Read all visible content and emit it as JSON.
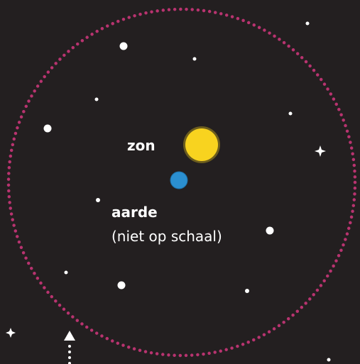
{
  "labels": {
    "sun": "zon",
    "earth": "aarde",
    "note": "(niet op schaal)"
  }
}
